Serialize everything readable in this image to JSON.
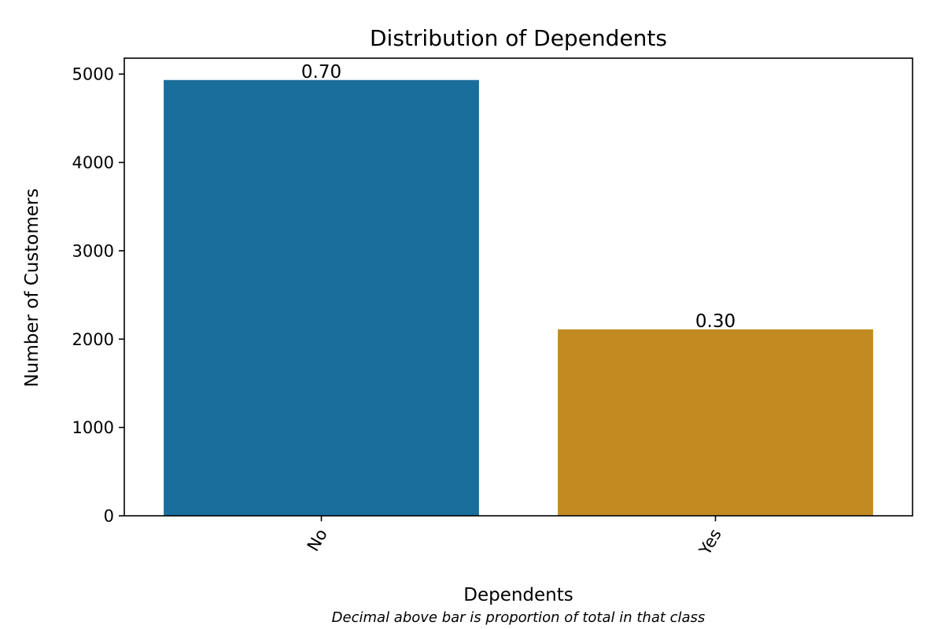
{
  "chart_data": {
    "type": "bar",
    "title": "Distribution of Dependents",
    "xlabel": "Dependents",
    "ylabel": "Number of Customers",
    "caption": "Decimal above bar is proportion of total in that class",
    "categories": [
      "No",
      "Yes"
    ],
    "values": [
      4933,
      2110
    ],
    "bar_labels": [
      "0.70",
      "0.30"
    ],
    "colors": [
      "#1a6e9c",
      "#c28a20"
    ],
    "ylim": [
      0,
      5180
    ],
    "yticks": [
      0,
      1000,
      2000,
      3000,
      4000,
      5000
    ],
    "grid": false,
    "legend": "none"
  }
}
